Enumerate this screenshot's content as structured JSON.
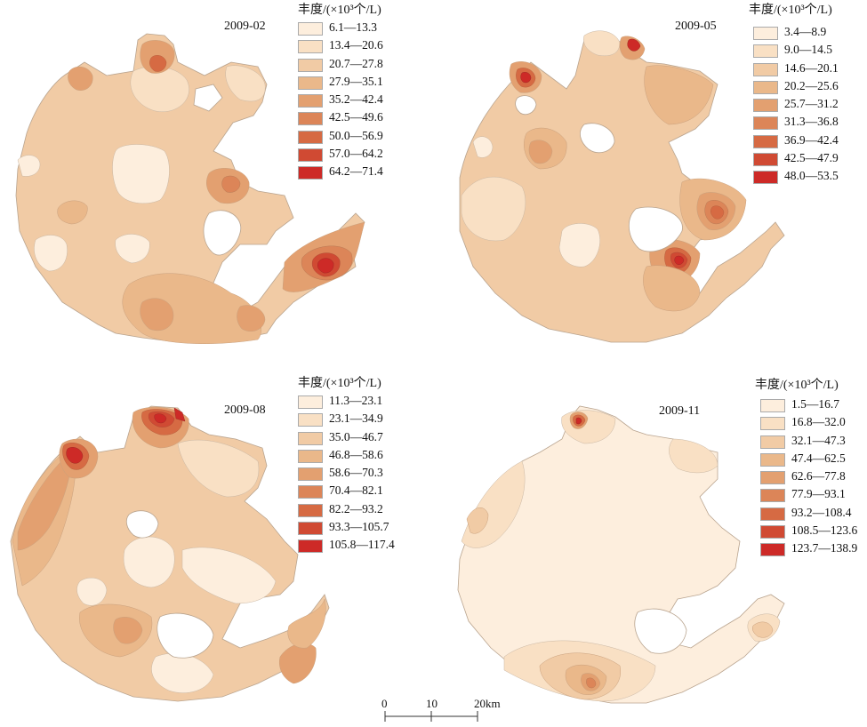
{
  "panels": [
    {
      "date": "2009-02",
      "legend_title": "丰度/(×10³个/L)",
      "classes": [
        "6.1—13.3",
        "13.4—20.6",
        "20.7—27.8",
        "27.9—35.1",
        "35.2—42.4",
        "42.5—49.6",
        "50.0—56.9",
        "57.0—64.2",
        "64.2—71.4"
      ]
    },
    {
      "date": "2009-05",
      "legend_title": "丰度/(×10³个/L)",
      "classes": [
        "3.4—8.9",
        "9.0—14.5",
        "14.6—20.1",
        "20.2—25.6",
        "25.7—31.2",
        "31.3—36.8",
        "36.9—42.4",
        "42.5—47.9",
        "48.0—53.5"
      ]
    },
    {
      "date": "2009-08",
      "legend_title": "丰度/(×10³个/L)",
      "classes": [
        "11.3—23.1",
        "23.1—34.9",
        "35.0—46.7",
        "46.8—58.6",
        "58.6—70.3",
        "70.4—82.1",
        "82.2—93.2",
        "93.3—105.7",
        "105.8—117.4"
      ]
    },
    {
      "date": "2009-11",
      "legend_title": "丰度/(×10³个/L)",
      "classes": [
        "1.5—16.7",
        "16.8—32.0",
        "32.1—47.3",
        "47.4—62.5",
        "62.6—77.8",
        "77.9—93.1",
        "93.2—108.4",
        "108.5—123.6",
        "123.7—138.9"
      ]
    }
  ],
  "palette": [
    "#fdeedd",
    "#f9e0c4",
    "#f1cba5",
    "#eab88a",
    "#e3a070",
    "#dc8558",
    "#d66a43",
    "#d04a33",
    "#cd2a27"
  ],
  "scalebar": {
    "ticks": [
      "0",
      "10",
      "20km"
    ]
  }
}
